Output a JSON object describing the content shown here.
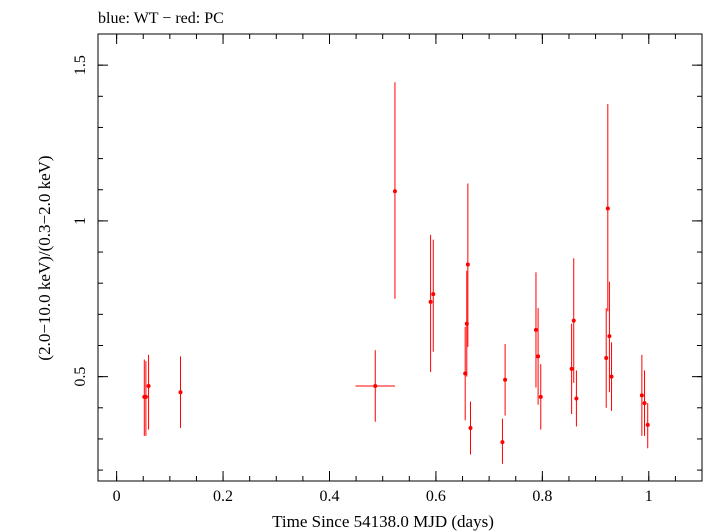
{
  "chart_data": {
    "type": "scatter",
    "title": "blue: WT − red: PC",
    "xlabel": "Time Since 54138.0 MJD (days)",
    "ylabel": "(2.0−10.0 keV)/(0.3−2.0 keV)",
    "xlim": [
      -0.035,
      1.1
    ],
    "ylim": [
      0.165,
      1.6
    ],
    "x_ticks": [
      {
        "value": 0,
        "label": "0"
      },
      {
        "value": 0.2,
        "label": "0.2"
      },
      {
        "value": 0.4,
        "label": "0.4"
      },
      {
        "value": 0.6,
        "label": "0.6"
      },
      {
        "value": 0.8,
        "label": "0.8"
      },
      {
        "value": 1,
        "label": "1"
      }
    ],
    "y_ticks": [
      {
        "value": 0.5,
        "label": "0.5"
      },
      {
        "value": 1.0,
        "label": "1"
      },
      {
        "value": 1.5,
        "label": "1.5"
      }
    ],
    "x_minor_step": 0.05,
    "y_minor_step": 0.1,
    "grid": false,
    "colors": {
      "WT": "#0000ff",
      "PC": "#ff0000",
      "axes": "#000000"
    },
    "series": [
      {
        "name": "PC",
        "color": "#ff0000",
        "points": [
          {
            "x": 0.052,
            "y": 0.435,
            "ylo": 0.31,
            "yhi": 0.555,
            "xerr": 0.0
          },
          {
            "x": 0.055,
            "y": 0.435,
            "ylo": 0.31,
            "yhi": 0.55,
            "xerr": 0.0
          },
          {
            "x": 0.06,
            "y": 0.47,
            "ylo": 0.33,
            "yhi": 0.57,
            "xerr": 0.0
          },
          {
            "x": 0.12,
            "y": 0.45,
            "ylo": 0.335,
            "yhi": 0.565,
            "xerr": 0.0
          },
          {
            "x": 0.486,
            "y": 0.47,
            "ylo": 0.355,
            "yhi": 0.585,
            "xerr": 0.037
          },
          {
            "x": 0.523,
            "y": 1.095,
            "ylo": 0.75,
            "yhi": 1.445,
            "xerr": 0.0
          },
          {
            "x": 0.59,
            "y": 0.74,
            "ylo": 0.515,
            "yhi": 0.955,
            "xerr": 0.0
          },
          {
            "x": 0.595,
            "y": 0.765,
            "ylo": 0.58,
            "yhi": 0.94,
            "xerr": 0.0
          },
          {
            "x": 0.655,
            "y": 0.51,
            "ylo": 0.36,
            "yhi": 0.66,
            "xerr": 0.0
          },
          {
            "x": 0.658,
            "y": 0.67,
            "ylo": 0.5,
            "yhi": 0.84,
            "xerr": 0.0
          },
          {
            "x": 0.66,
            "y": 0.86,
            "ylo": 0.595,
            "yhi": 1.12,
            "xerr": 0.0
          },
          {
            "x": 0.665,
            "y": 0.335,
            "ylo": 0.25,
            "yhi": 0.42,
            "xerr": 0.0
          },
          {
            "x": 0.725,
            "y": 0.29,
            "ylo": 0.22,
            "yhi": 0.365,
            "xerr": 0.0
          },
          {
            "x": 0.73,
            "y": 0.49,
            "ylo": 0.375,
            "yhi": 0.605,
            "xerr": 0.0
          },
          {
            "x": 0.788,
            "y": 0.65,
            "ylo": 0.465,
            "yhi": 0.835,
            "xerr": 0.0
          },
          {
            "x": 0.792,
            "y": 0.565,
            "ylo": 0.41,
            "yhi": 0.72,
            "xerr": 0.0
          },
          {
            "x": 0.797,
            "y": 0.435,
            "ylo": 0.33,
            "yhi": 0.54,
            "xerr": 0.0
          },
          {
            "x": 0.855,
            "y": 0.525,
            "ylo": 0.38,
            "yhi": 0.67,
            "xerr": 0.0
          },
          {
            "x": 0.859,
            "y": 0.68,
            "ylo": 0.48,
            "yhi": 0.88,
            "xerr": 0.0
          },
          {
            "x": 0.864,
            "y": 0.43,
            "ylo": 0.34,
            "yhi": 0.52,
            "xerr": 0.0
          },
          {
            "x": 0.92,
            "y": 0.56,
            "ylo": 0.4,
            "yhi": 0.72,
            "xerr": 0.0
          },
          {
            "x": 0.923,
            "y": 1.04,
            "ylo": 0.71,
            "yhi": 1.375,
            "xerr": 0.0
          },
          {
            "x": 0.926,
            "y": 0.63,
            "ylo": 0.45,
            "yhi": 0.805,
            "xerr": 0.0
          },
          {
            "x": 0.93,
            "y": 0.5,
            "ylo": 0.39,
            "yhi": 0.61,
            "xerr": 0.0
          },
          {
            "x": 0.987,
            "y": 0.44,
            "ylo": 0.31,
            "yhi": 0.57,
            "xerr": 0.0
          },
          {
            "x": 0.992,
            "y": 0.415,
            "ylo": 0.31,
            "yhi": 0.52,
            "xerr": 0.0
          },
          {
            "x": 0.998,
            "y": 0.345,
            "ylo": 0.27,
            "yhi": 0.415,
            "xerr": 0.0
          }
        ]
      }
    ]
  }
}
